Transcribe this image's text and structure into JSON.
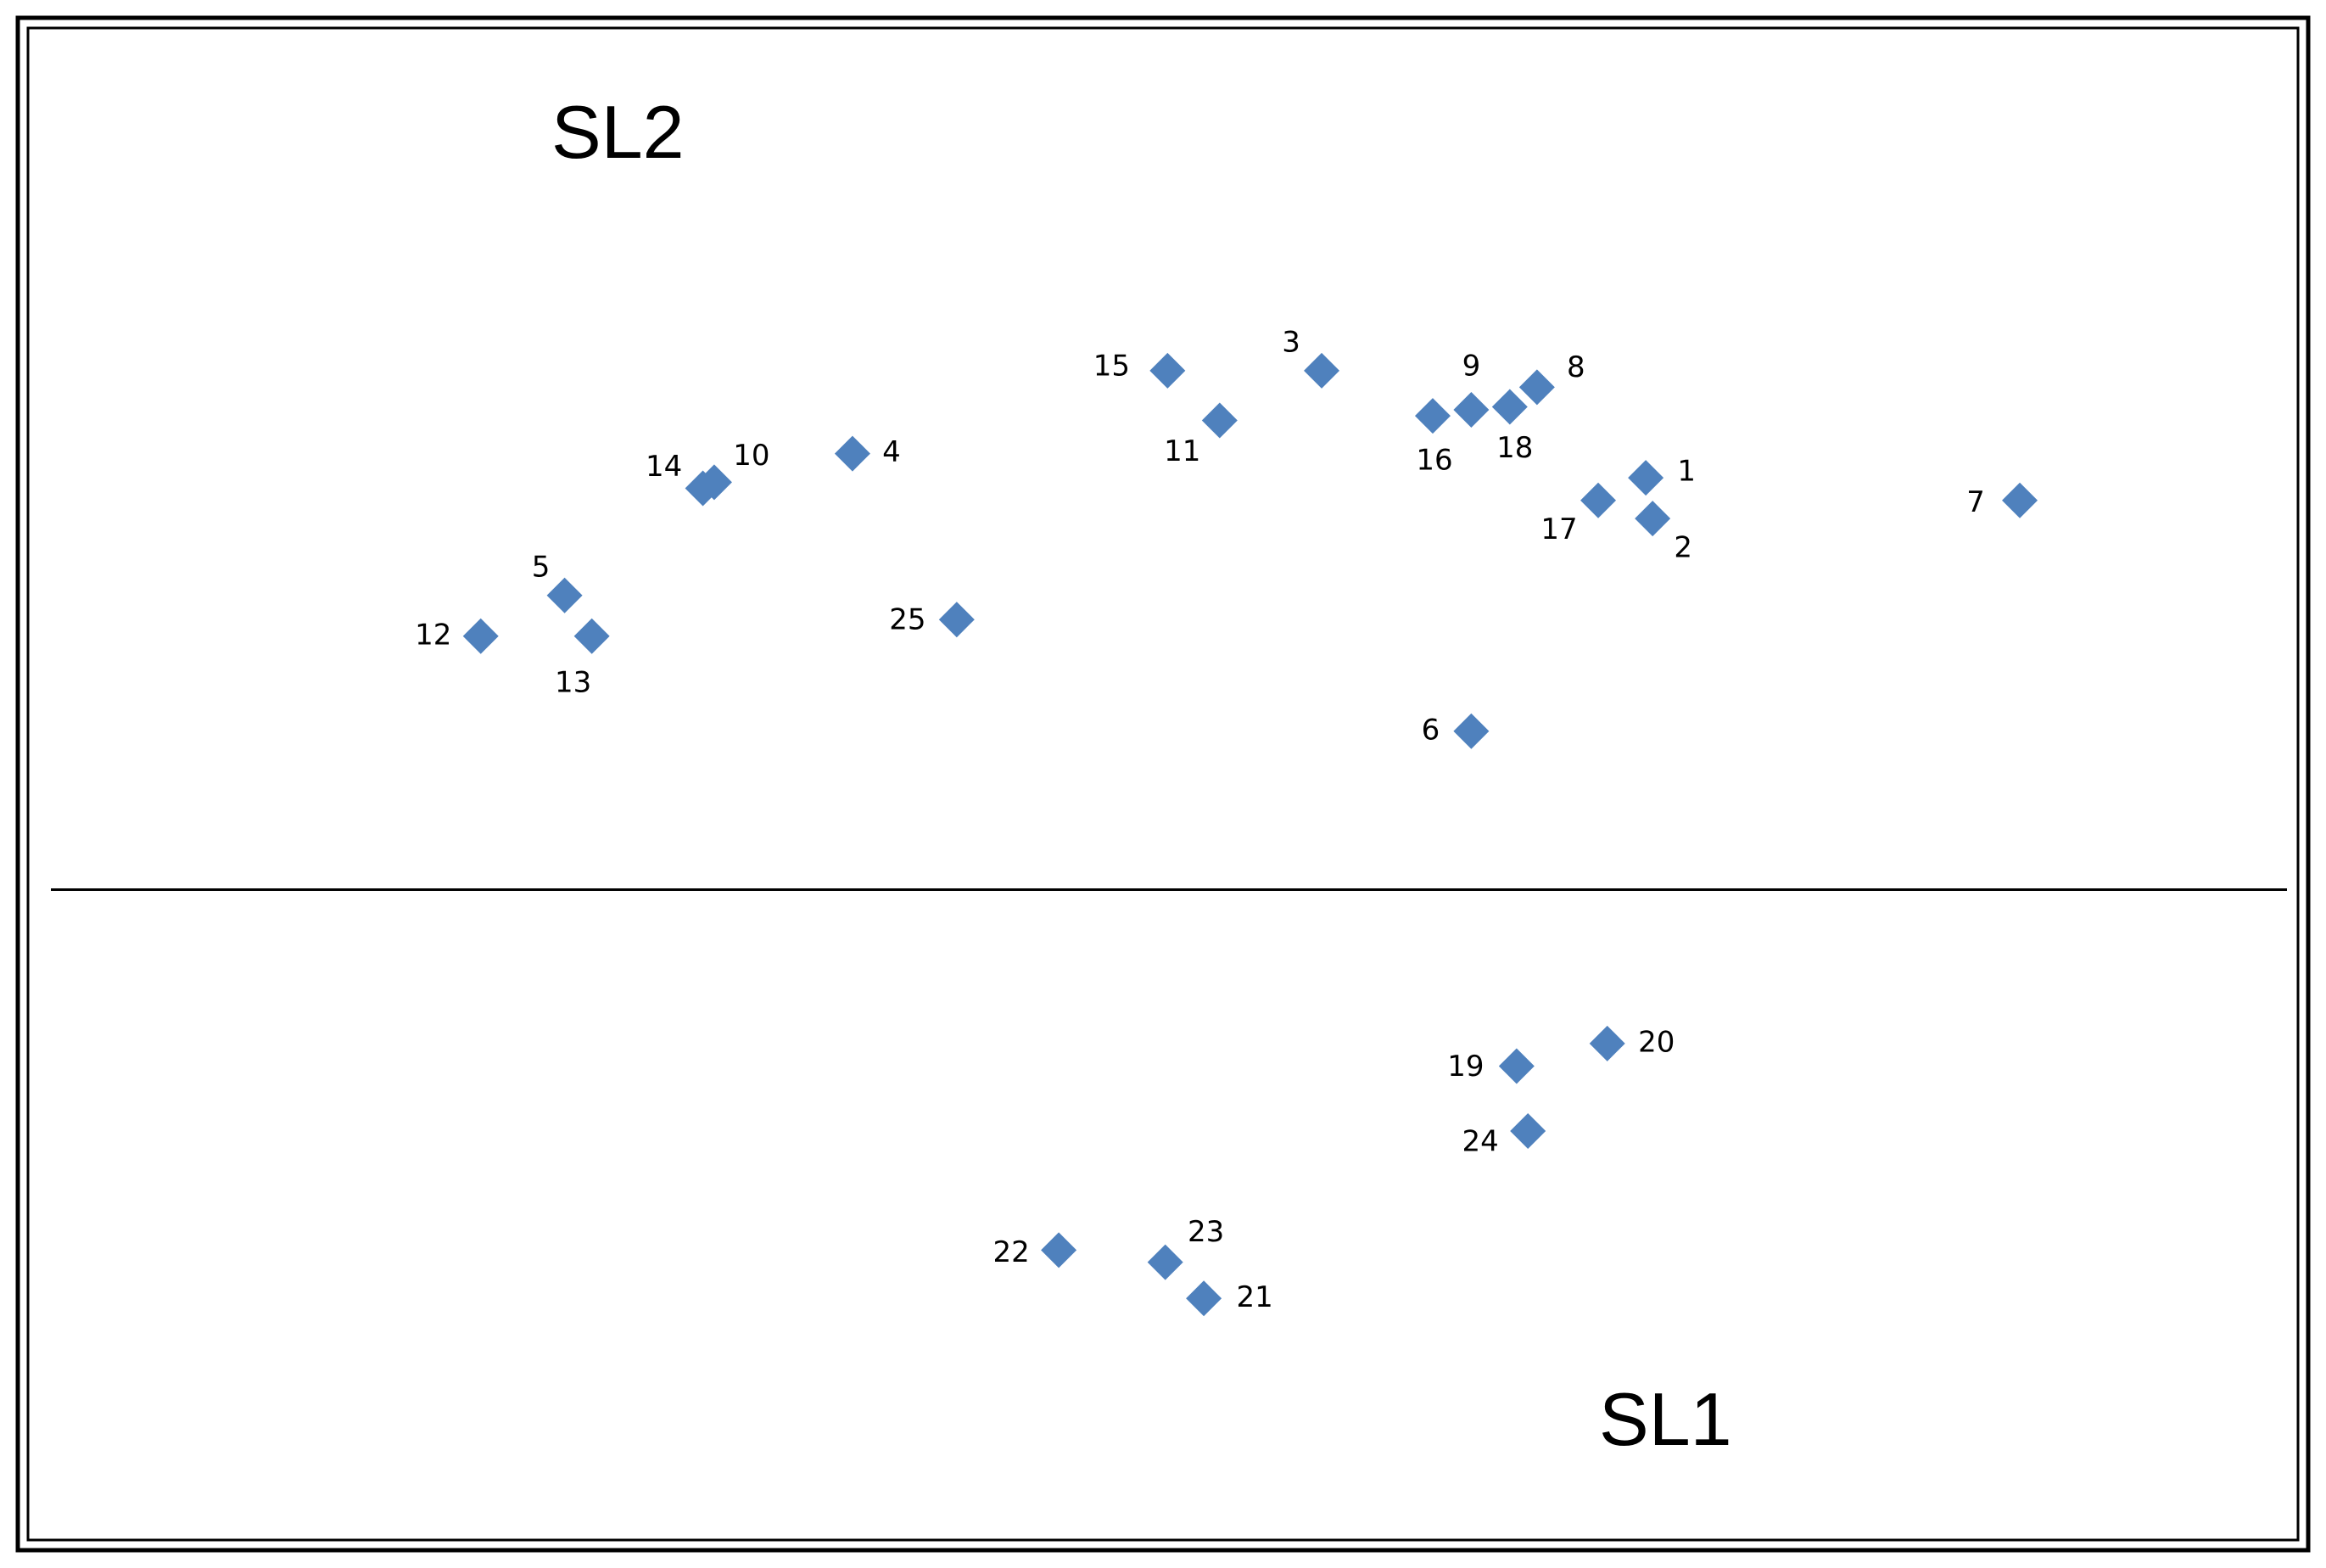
{
  "chart_data": {
    "type": "scatter",
    "marker": "diamond",
    "colors": {
      "marker": "#4F81BD",
      "border": "#000000",
      "divider": "#000000",
      "background": "#FFFFFF"
    },
    "xlim": [
      0,
      100
    ],
    "ylim": [
      0,
      100
    ],
    "grid": false,
    "divider_y": 43,
    "groups": [
      {
        "name": "SL2",
        "region": "upper"
      },
      {
        "name": "SL1",
        "region": "lower"
      }
    ],
    "points": [
      {
        "label": "1",
        "x": 71.3,
        "y": 70.3
      },
      {
        "label": "2",
        "x": 71.6,
        "y": 67.6
      },
      {
        "label": "3",
        "x": 57.0,
        "y": 77.4
      },
      {
        "label": "4",
        "x": 36.3,
        "y": 71.9
      },
      {
        "label": "5",
        "x": 23.6,
        "y": 62.5
      },
      {
        "label": "6",
        "x": 63.6,
        "y": 53.5
      },
      {
        "label": "7",
        "x": 87.8,
        "y": 68.8
      },
      {
        "label": "8",
        "x": 66.5,
        "y": 76.3
      },
      {
        "label": "9",
        "x": 63.6,
        "y": 74.8
      },
      {
        "label": "10",
        "x": 30.2,
        "y": 70.0
      },
      {
        "label": "11",
        "x": 52.5,
        "y": 74.1
      },
      {
        "label": "12",
        "x": 19.9,
        "y": 59.8
      },
      {
        "label": "13",
        "x": 24.8,
        "y": 59.8
      },
      {
        "label": "14",
        "x": 29.7,
        "y": 69.6
      },
      {
        "label": "15",
        "x": 50.2,
        "y": 77.4
      },
      {
        "label": "16",
        "x": 61.9,
        "y": 74.4
      },
      {
        "label": "17",
        "x": 69.2,
        "y": 68.8
      },
      {
        "label": "18",
        "x": 65.3,
        "y": 75.0
      },
      {
        "label": "19",
        "x": 65.6,
        "y": 31.3
      },
      {
        "label": "20",
        "x": 69.6,
        "y": 32.8
      },
      {
        "label": "21",
        "x": 51.8,
        "y": 15.9
      },
      {
        "label": "22",
        "x": 45.4,
        "y": 19.1
      },
      {
        "label": "23",
        "x": 50.1,
        "y": 18.3
      },
      {
        "label": "24",
        "x": 66.1,
        "y": 27.0
      },
      {
        "label": "25",
        "x": 40.9,
        "y": 60.9
      }
    ]
  }
}
